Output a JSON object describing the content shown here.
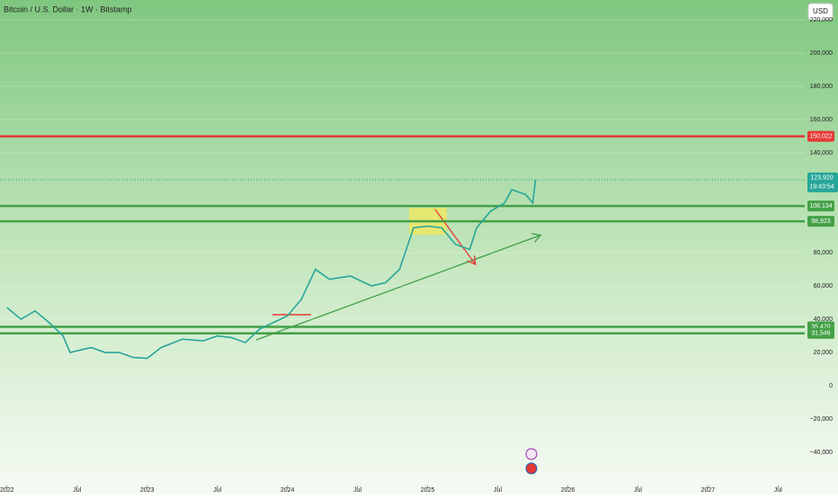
{
  "chart_data": {
    "type": "line",
    "title": "Bitcoin / U.S. Dollar · 1W · Bitstamp",
    "currency": "USD",
    "countdown": "19:43:54",
    "last_price": {
      "value": 123920,
      "label": "123,920"
    },
    "x": [
      2022.0,
      2022.1,
      2022.2,
      2022.3,
      2022.4,
      2022.45,
      2022.6,
      2022.7,
      2022.8,
      2022.9,
      2023.0,
      2023.1,
      2023.25,
      2023.4,
      2023.5,
      2023.6,
      2023.7,
      2023.8,
      2023.9,
      2024.0,
      2024.1,
      2024.2,
      2024.3,
      2024.45,
      2024.6,
      2024.7,
      2024.8,
      2024.9,
      2025.0,
      2025.1,
      2025.2,
      2025.3,
      2025.35,
      2025.45,
      2025.55,
      2025.6,
      2025.7,
      2025.75,
      2025.77
    ],
    "series": [
      {
        "color": "#26a69a",
        "values": [
          47000,
          40000,
          45000,
          38000,
          30000,
          20000,
          23000,
          20000,
          20000,
          17000,
          16500,
          23000,
          28000,
          27000,
          30000,
          29000,
          26000,
          34000,
          38000,
          42000,
          52000,
          70000,
          64000,
          66000,
          60000,
          62000,
          70000,
          95000,
          96000,
          95000,
          85000,
          82000,
          95000,
          105000,
          110000,
          118000,
          115000,
          110000,
          123920
        ]
      }
    ],
    "levels": [
      {
        "value": 150022,
        "label": "150,022",
        "color": "#e53935"
      },
      {
        "value": 108134,
        "label": "108,134",
        "color": "#43a047"
      },
      {
        "value": 98923,
        "label": "98,923",
        "color": "#43a047"
      },
      {
        "value": 35470,
        "label": "35,470",
        "color": "#43a047"
      },
      {
        "value": 31546,
        "label": "31,546",
        "color": "#43a047"
      }
    ],
    "xlim": [
      2021.95,
      2027.69
    ],
    "xticks": [
      {
        "value": 2022.0,
        "label": "2022"
      },
      {
        "value": 2022.5,
        "label": "Jul"
      },
      {
        "value": 2023.0,
        "label": "2023"
      },
      {
        "value": 2023.5,
        "label": "Jul"
      },
      {
        "value": 2024.0,
        "label": "2024"
      },
      {
        "value": 2024.5,
        "label": "Jul"
      },
      {
        "value": 2025.0,
        "label": "2025"
      },
      {
        "value": 2025.5,
        "label": "Jul"
      },
      {
        "value": 2026.0,
        "label": "2026"
      },
      {
        "value": 2026.5,
        "label": "Jul"
      },
      {
        "value": 2027.0,
        "label": "2027"
      },
      {
        "value": 2027.5,
        "label": "Jul"
      }
    ],
    "ylim": [
      -60000,
      232000
    ],
    "yticks": [
      {
        "value": -40000,
        "label": "−40,000"
      },
      {
        "value": -20000,
        "label": "−20,000"
      },
      0,
      {
        "value": 20000,
        "label": "20,000"
      },
      {
        "value": 40000,
        "label": "40,000"
      },
      {
        "value": 60000,
        "label": "60,000"
      },
      {
        "value": 80000,
        "label": "80,000"
      },
      {
        "value": 140000,
        "label": "140,000"
      },
      {
        "value": 160000,
        "label": "160,000"
      },
      {
        "value": 180000,
        "label": "180,000"
      },
      {
        "value": 200000,
        "label": "200,000"
      },
      {
        "value": 220000,
        "label": "220,000"
      }
    ]
  }
}
